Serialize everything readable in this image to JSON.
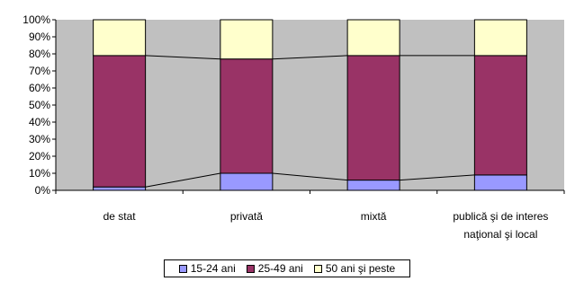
{
  "chart_data": {
    "type": "bar",
    "stacked": true,
    "percent": true,
    "categories": [
      [
        "de stat"
      ],
      [
        "privată"
      ],
      [
        "mixtă"
      ],
      [
        "publică şi de interes",
        "naţional şi local"
      ]
    ],
    "series": [
      {
        "name": "15-24 ani",
        "color": "#9999ff",
        "values": [
          2,
          10,
          6,
          9
        ]
      },
      {
        "name": "25-49 ani",
        "color": "#993366",
        "values": [
          77,
          67,
          73,
          70
        ]
      },
      {
        "name": "50 ani şi peste",
        "color": "#ffffcc",
        "values": [
          21,
          23,
          21,
          21
        ]
      }
    ],
    "yticks": [
      "0%",
      "10%",
      "20%",
      "30%",
      "40%",
      "50%",
      "60%",
      "70%",
      "80%",
      "90%",
      "100%"
    ],
    "ylim": [
      0,
      100
    ],
    "grid": false,
    "plot_background": "#c0c0c0",
    "series_lines": true,
    "legend_position": "bottom"
  }
}
